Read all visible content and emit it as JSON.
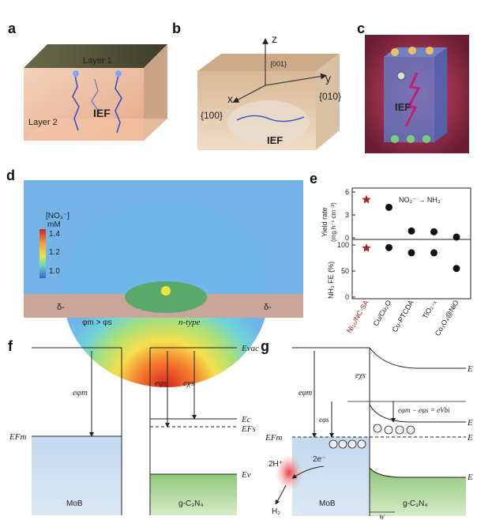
{
  "panels": {
    "a": {
      "label": "a",
      "layer1": "Layer 1",
      "layer2": "Layer 2",
      "ief": "IEF"
    },
    "b": {
      "label": "b",
      "axis_z": "z",
      "axis_y": "y",
      "axis_x": "x",
      "face_001": "{001}",
      "face_010": "{010}",
      "face_100": "{100}",
      "ief": "IEF"
    },
    "c": {
      "label": "c",
      "ief": "IEF"
    },
    "d": {
      "label": "d",
      "colorbar_title": "[NO₃⁻]",
      "colorbar_unit": "mM",
      "ticks": [
        "1.4",
        "1.2",
        "1.0"
      ],
      "delta_left": "δ-",
      "delta_right": "δ-"
    },
    "e": {
      "label": "e",
      "reaction": "NO₃⁻ → NH₃",
      "ylabel_top": "Yield rate",
      "ylabel_top_unit": "(mg h⁻¹ cm⁻²)",
      "ylabel_bottom": "NH₃ FE (%)"
    },
    "f": {
      "label": "f",
      "work_condition": "φm > φs",
      "ntype": "n-type",
      "E_vac": "Evac",
      "E_Fm": "EFm",
      "E_c": "Ec",
      "E_Fs": "EFs",
      "E_v": "Ev",
      "ephim": "eφm",
      "ephis": "eφs",
      "echis": "eχs",
      "metal": "MoB",
      "semi": "g-C₃N₄"
    },
    "g": {
      "label": "g",
      "E_Fm": "EFm",
      "ephim": "eφm",
      "ephis": "eφs",
      "echis": "eχs",
      "barrier": "eφm − eφs = eVbi",
      "h_plus": "2H⁺",
      "electrons": "2e⁻",
      "h2": "H₂",
      "metal": "MoB",
      "semi": "g-C₃N₄",
      "width": "W",
      "E_edge": "E"
    }
  },
  "chart_data": {
    "type": "scatter",
    "categories": [
      "Ni₃₅/NC-SA",
      "Cu/Cu₂O",
      "Cu-PTCDA",
      "TiO₂₋ₓ",
      "Co₃O₄@NiO"
    ],
    "series": [
      {
        "name": "Yield rate",
        "values": [
          5.0,
          4.0,
          0.9,
          0.8,
          0.1
        ]
      },
      {
        "name": "NH₃ FE (%)",
        "values": [
          94,
          95,
          85,
          85,
          55
        ]
      }
    ],
    "yield_axis": {
      "ticks": [
        0,
        3,
        6
      ],
      "ylim": [
        0,
        6
      ]
    },
    "fe_axis": {
      "ticks": [
        0,
        50,
        100
      ],
      "ylim": [
        0,
        100
      ]
    },
    "highlight_color": "#b22222"
  },
  "colors": {
    "metal_blue": "#a9c6e2",
    "semi_green": "#9fcf8e",
    "star_red": "#c0181e"
  }
}
